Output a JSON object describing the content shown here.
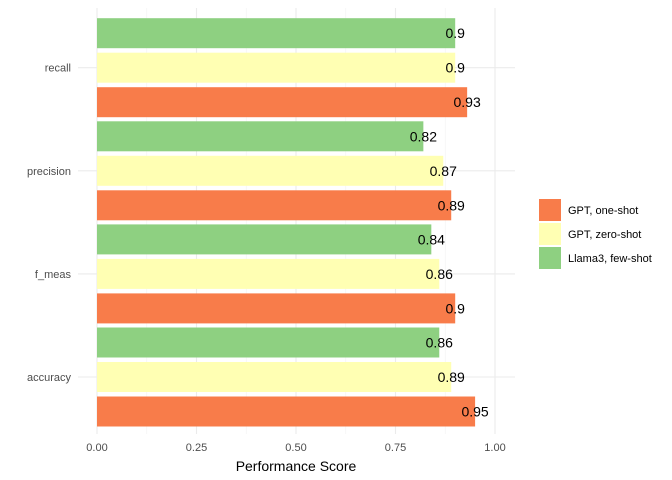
{
  "chart_data": {
    "type": "bar",
    "orientation": "horizontal",
    "categories": [
      "accuracy",
      "f_meas",
      "precision",
      "recall"
    ],
    "series": [
      {
        "name": "GPT, one-shot",
        "color": "#F87C4A",
        "values": [
          0.95,
          0.9,
          0.89,
          0.93
        ],
        "labels": [
          "0.95",
          "0.9",
          "0.89",
          "0.93"
        ]
      },
      {
        "name": "GPT, zero-shot",
        "color": "#FFFFB3",
        "values": [
          0.89,
          0.86,
          0.87,
          0.9
        ],
        "labels": [
          "0.89",
          "0.86",
          "0.87",
          "0.9"
        ]
      },
      {
        "name": "Llama3, few-shot",
        "color": "#8ED081",
        "values": [
          0.86,
          0.84,
          0.82,
          0.9
        ],
        "labels": [
          "0.86",
          "0.84",
          "0.82",
          "0.9"
        ]
      }
    ],
    "xlabel": "Performance Score",
    "ylabel": "",
    "xlim": [
      0,
      1.05
    ],
    "xticks": [
      0,
      0.25,
      0.5,
      0.75,
      1.0
    ],
    "xtick_labels": [
      "0.00",
      "0.25",
      "0.50",
      "0.75",
      "1.00"
    ],
    "grid": true,
    "legend_position": "right"
  }
}
